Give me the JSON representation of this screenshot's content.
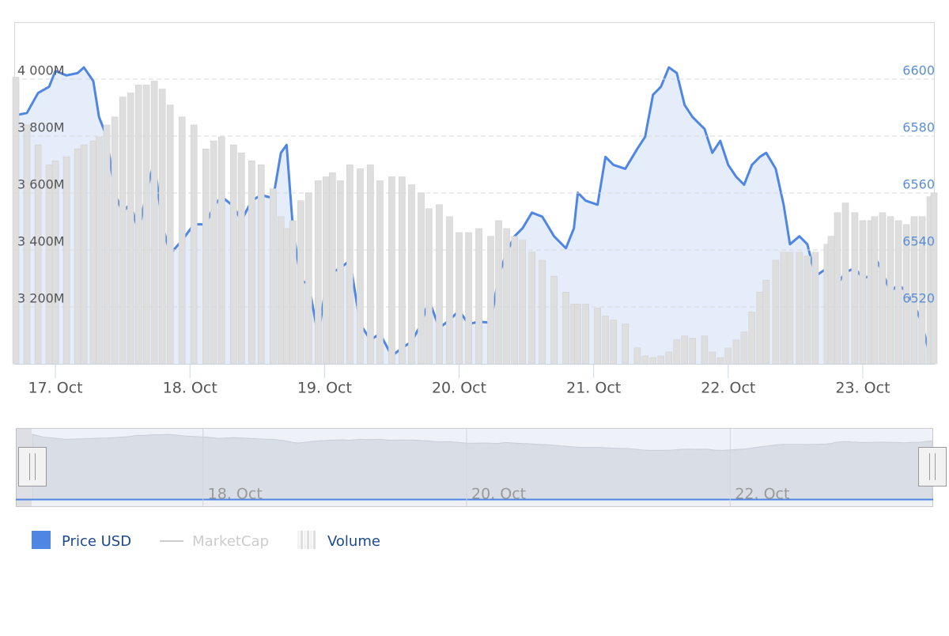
{
  "chart_data": {
    "type": "line",
    "xlim": [
      16.694,
      23.535
    ],
    "xticks": [
      {
        "value": 17,
        "label": "17. Oct"
      },
      {
        "value": 18,
        "label": "18. Oct"
      },
      {
        "value": 19,
        "label": "19. Oct"
      },
      {
        "value": 20,
        "label": "20. Oct"
      },
      {
        "value": 21,
        "label": "21. Oct"
      },
      {
        "value": 22,
        "label": "22. Oct"
      },
      {
        "value": 23,
        "label": "23. Oct"
      }
    ],
    "ylim": [
      3000,
      4200
    ],
    "yticks": [
      {
        "value": 3200,
        "label": "3 200M"
      },
      {
        "value": 3400,
        "label": "3 400M"
      },
      {
        "value": 3600,
        "label": "3 600M"
      },
      {
        "value": 3800,
        "label": "3 800M"
      },
      {
        "value": 4000,
        "label": "4 000M"
      }
    ],
    "y2lim": [
      6500,
      6620
    ],
    "y2ticks": [
      6520,
      6540,
      6560,
      6580,
      6600
    ],
    "grid": true,
    "legend": "bottom-left",
    "x": [
      16.706,
      16.788,
      16.871,
      16.953,
      17.0,
      17.082,
      17.165,
      17.212,
      17.282,
      17.324,
      17.382,
      17.441,
      17.5,
      17.559,
      17.618,
      17.676,
      17.735,
      17.794,
      17.853,
      17.941,
      18.029,
      18.118,
      18.176,
      18.235,
      18.324,
      18.382,
      18.459,
      18.529,
      18.618,
      18.676,
      18.718,
      18.765,
      18.824,
      18.882,
      18.953,
      19.012,
      19.059,
      19.118,
      19.188,
      19.265,
      19.341,
      19.412,
      19.5,
      19.576,
      19.647,
      19.718,
      19.776,
      19.853,
      19.929,
      20.0,
      20.071,
      20.147,
      20.235,
      20.294,
      20.353,
      20.412,
      20.471,
      20.541,
      20.618,
      20.706,
      20.794,
      20.853,
      20.882,
      20.941,
      21.029,
      21.088,
      21.147,
      21.235,
      21.324,
      21.382,
      21.441,
      21.5,
      21.559,
      21.618,
      21.676,
      21.735,
      21.824,
      21.882,
      21.941,
      22.0,
      22.059,
      22.118,
      22.176,
      22.235,
      22.282,
      22.353,
      22.412,
      22.459,
      22.529,
      22.588,
      22.647,
      22.735,
      22.765,
      22.812,
      22.871,
      22.941,
      23.0,
      23.059,
      23.088,
      23.147,
      23.206,
      23.265,
      23.324,
      23.382,
      23.441,
      23.5,
      23.529
    ],
    "series": [
      {
        "name": "Price USD",
        "type": "area",
        "axis": "y2",
        "color": "#4f86e3",
        "values": [
          6587.3,
          6588.1,
          6595.1,
          6597.3,
          6602.9,
          6601.3,
          6602.1,
          6604.1,
          6599.3,
          6586.7,
          6579.7,
          6560.1,
          6553.1,
          6556.5,
          6546.2,
          6560.1,
          6571.3,
          6549.0,
          6538.6,
          6543.4,
          6549.0,
          6549.0,
          6555.4,
          6558.7,
          6555.4,
          6550.3,
          6557.3,
          6559.3,
          6558.2,
          6574.1,
          6576.9,
          6547.6,
          6529.4,
          6528.0,
          6509.8,
          6528.0,
          6532.2,
          6533.6,
          6536.4,
          6514.0,
          6508.4,
          6510.6,
          6502.8,
          6505.6,
          6507.8,
          6514.0,
          6522.4,
          6512.6,
          6515.4,
          6518.7,
          6514.0,
          6514.8,
          6514.5,
          6530.8,
          6539.2,
          6544.8,
          6547.6,
          6553.1,
          6551.7,
          6544.8,
          6540.6,
          6547.6,
          6560.1,
          6557.3,
          6555.9,
          6572.7,
          6569.9,
          6568.5,
          6575.5,
          6579.7,
          6594.5,
          6597.3,
          6604.1,
          6602.1,
          6590.9,
          6586.7,
          6582.5,
          6574.1,
          6578.3,
          6569.9,
          6565.7,
          6562.9,
          6569.9,
          6572.7,
          6574.1,
          6568.5,
          6555.9,
          6542.0,
          6544.8,
          6542.0,
          6530.8,
          6533.6,
          6521.0,
          6528.0,
          6532.2,
          6533.6,
          6530.2,
          6530.8,
          6537.8,
          6532.2,
          6525.2,
          6528.0,
          6525.2,
          6521.0,
          6514.0,
          6502.8,
          6505.6
        ]
      },
      {
        "name": "MarketCap",
        "type": "line",
        "color": "#cccccc",
        "visible": false
      },
      {
        "name": "Volume",
        "type": "column",
        "color": "#dedede",
        "values": [
          4007,
          3839,
          3769,
          3699,
          3713,
          3727,
          3755,
          3769,
          3783,
          3797,
          3839,
          3867,
          3937,
          3951,
          3979,
          3979,
          3993,
          3965,
          3909,
          3867,
          3839,
          3755,
          3783,
          3797,
          3769,
          3741,
          3713,
          3699,
          3615,
          3517,
          3475,
          3503,
          3573,
          3601,
          3643,
          3657,
          3671,
          3643,
          3699,
          3685,
          3699,
          3643,
          3657,
          3657,
          3629,
          3601,
          3545,
          3559,
          3517,
          3461,
          3461,
          3475,
          3448,
          3503,
          3475,
          3448,
          3434,
          3392,
          3364,
          3308,
          3252,
          3210,
          3210,
          3210,
          3196,
          3168,
          3154,
          3140,
          3056,
          3028,
          3022,
          3028,
          3042,
          3084,
          3098,
          3090,
          3098,
          3042,
          3022,
          3056,
          3084,
          3112,
          3182,
          3252,
          3294,
          3364,
          3392,
          3392,
          3392,
          3378,
          3392,
          3420,
          3448,
          3531,
          3565,
          3531,
          3503,
          3503,
          3517,
          3531,
          3517,
          3503,
          3489,
          3517,
          3517,
          3587,
          3601
        ]
      }
    ],
    "navigator": {
      "xlim": [
        16.58,
        23.54
      ],
      "xticks": [
        {
          "value": 18,
          "label": "18. Oct"
        },
        {
          "value": 20,
          "label": "20. Oct"
        },
        {
          "value": 22,
          "label": "22. Oct"
        }
      ]
    }
  }
}
